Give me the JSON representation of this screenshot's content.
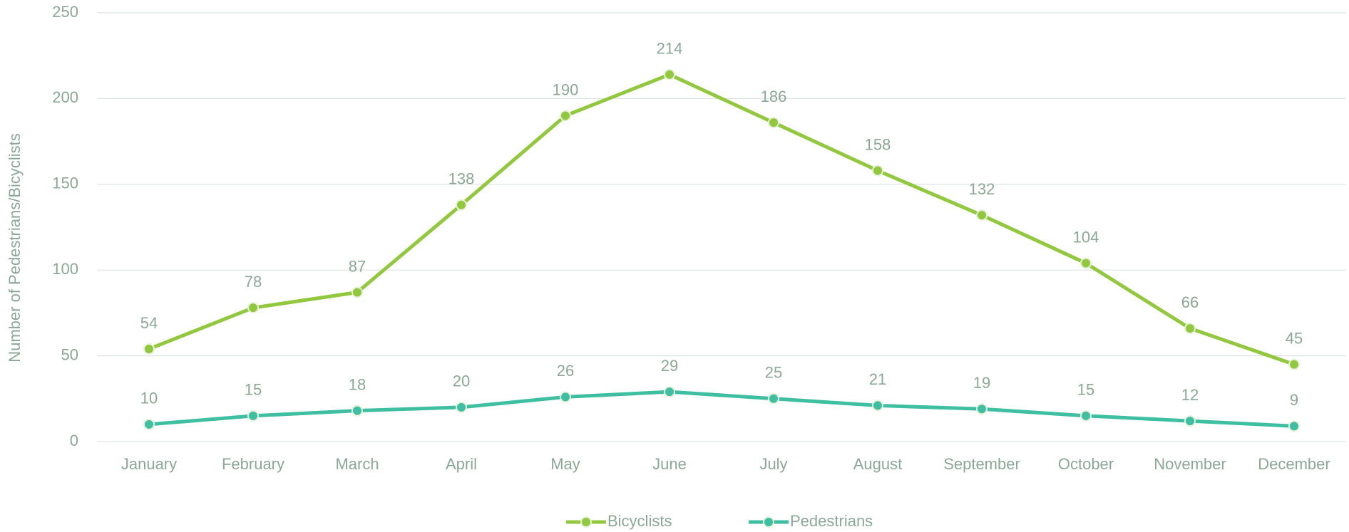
{
  "chart_data": {
    "type": "line",
    "y_label": "Number of Pedestrians/Bicyclists",
    "categories": [
      "January",
      "February",
      "March",
      "April",
      "May",
      "June",
      "July",
      "August",
      "September",
      "October",
      "November",
      "December"
    ],
    "series": [
      {
        "name": "Bicyclists",
        "color": "#92c83e",
        "values": [
          54,
          78,
          87,
          138,
          190,
          214,
          186,
          158,
          132,
          104,
          66,
          45
        ]
      },
      {
        "name": "Pedestrians",
        "color": "#3fbfa1",
        "values": [
          10,
          15,
          18,
          20,
          26,
          29,
          25,
          21,
          19,
          15,
          12,
          9
        ]
      }
    ],
    "ylim": [
      0,
      250
    ],
    "yticks": [
      0,
      50,
      100,
      150,
      200,
      250
    ],
    "grid": true,
    "legend": "bottom"
  }
}
